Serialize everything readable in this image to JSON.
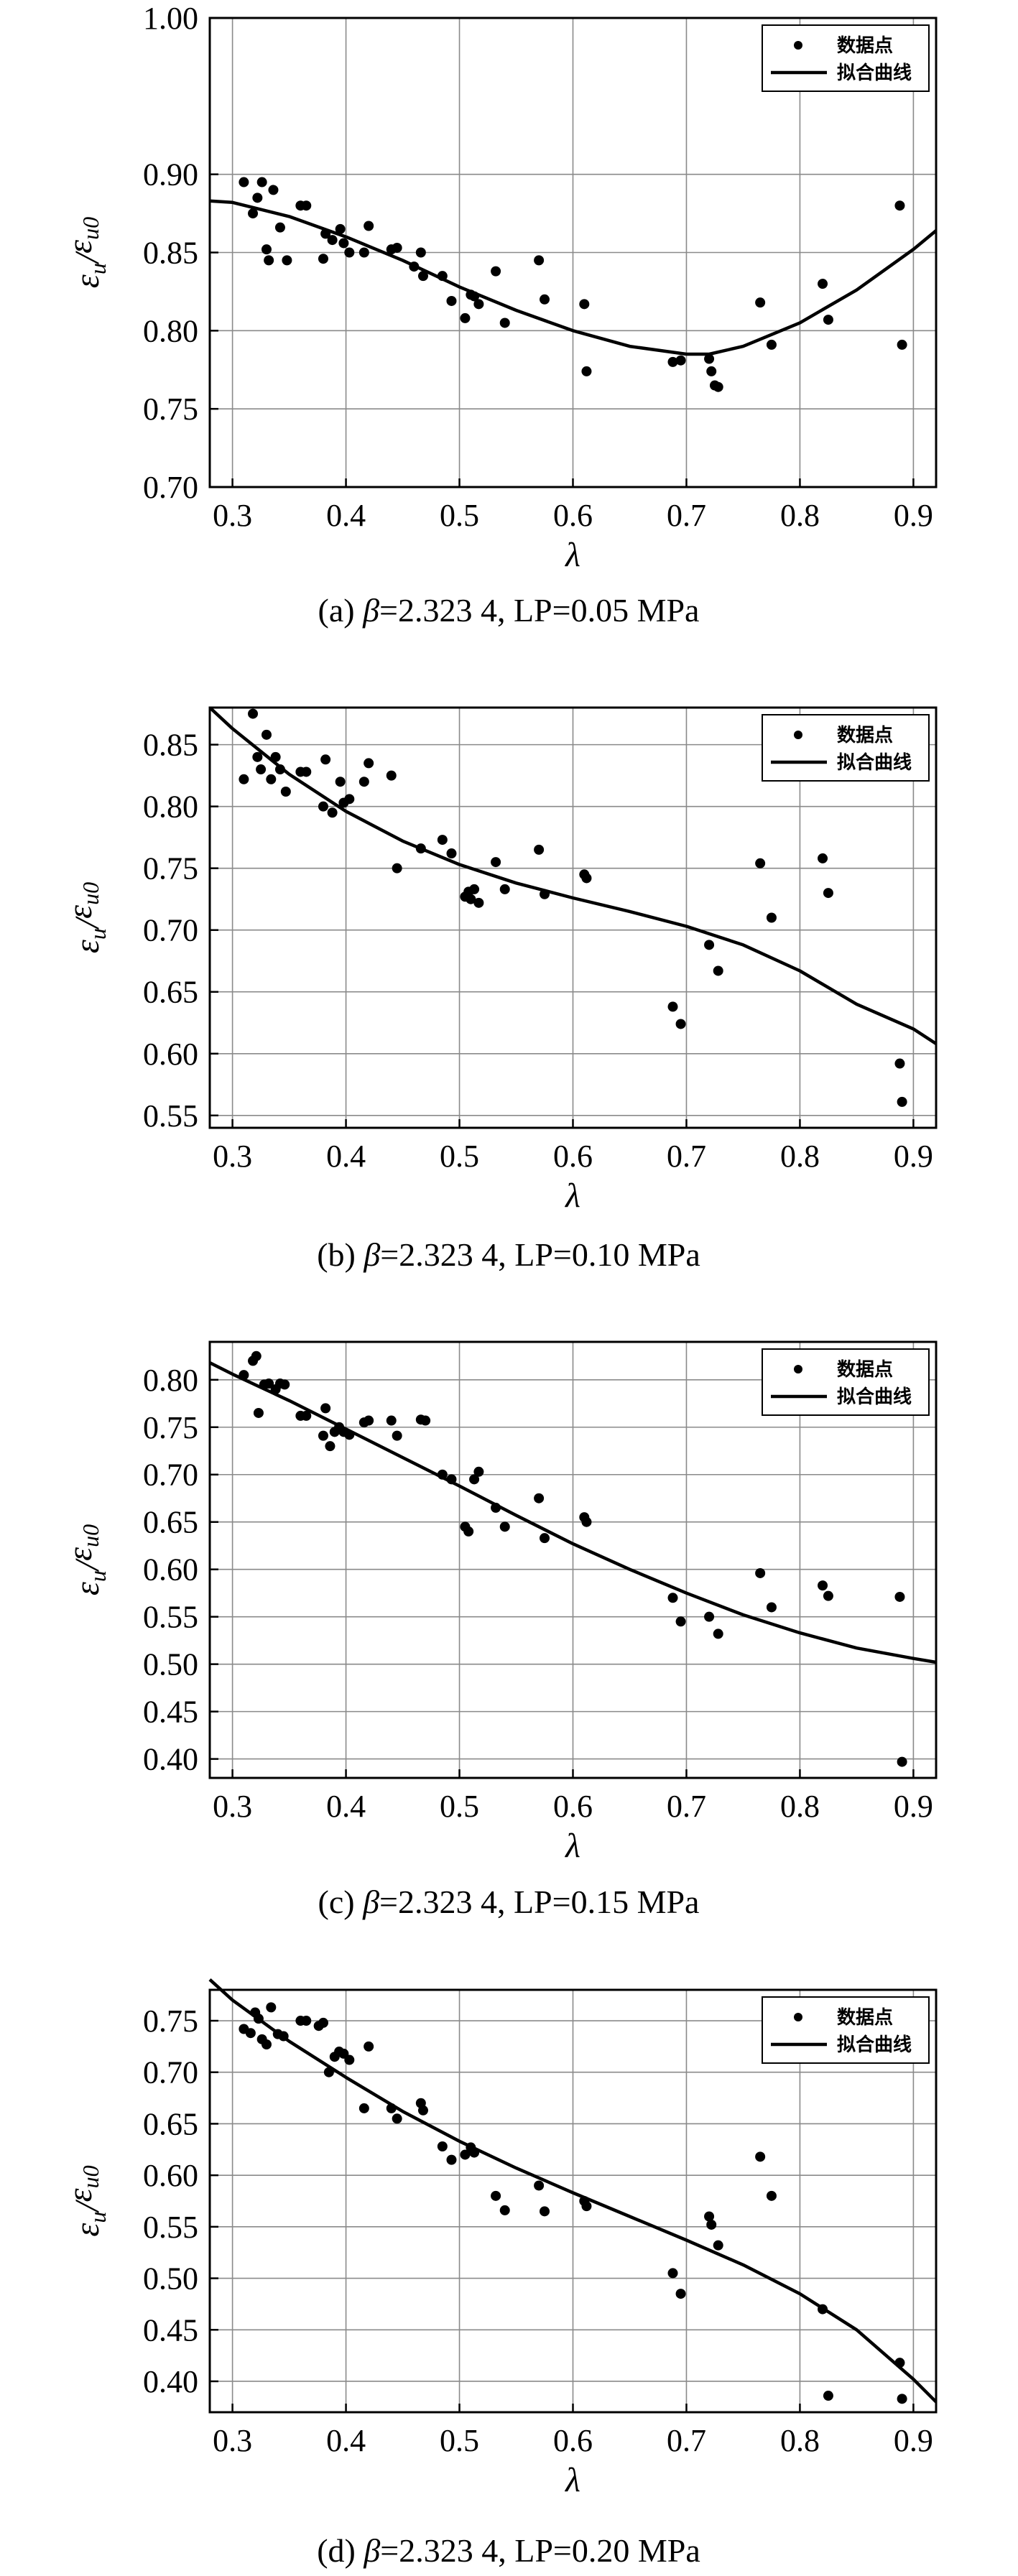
{
  "chart_data": [
    {
      "type": "scatter",
      "panel": "a",
      "caption_prefix": "(a) ",
      "caption_beta": "β",
      "caption_suffix": "=2.323 4, LP=0.05 MPa",
      "ylabel_main": "ε",
      "ylabel_num_sub": "u",
      "ylabel_den_sub": "u0",
      "xlabel": "λ",
      "xlim": [
        0.28,
        0.92
      ],
      "ylim": [
        0.7,
        1.0
      ],
      "xticks": [
        0.3,
        0.4,
        0.5,
        0.6,
        0.7,
        0.8,
        0.9
      ],
      "xtick_labels": [
        "0.3",
        "0.4",
        "0.5",
        "0.6",
        "0.7",
        "0.8",
        "0.9"
      ],
      "yticks": [
        0.7,
        0.75,
        0.8,
        0.85,
        0.9,
        1.0
      ],
      "ytick_labels": [
        "0.70",
        "0.75",
        "0.80",
        "0.85",
        "0.90",
        "1.00"
      ],
      "grid": true,
      "legend_position": "top-right",
      "legend": {
        "points": "数据点",
        "fit": "拟合曲线"
      },
      "series": [
        {
          "name": "数据点",
          "style": "points",
          "x": [
            0.31,
            0.318,
            0.322,
            0.326,
            0.33,
            0.332,
            0.336,
            0.342,
            0.348,
            0.36,
            0.365,
            0.38,
            0.382,
            0.388,
            0.395,
            0.398,
            0.403,
            0.416,
            0.42,
            0.44,
            0.445,
            0.46,
            0.466,
            0.468,
            0.485,
            0.493,
            0.505,
            0.51,
            0.513,
            0.517,
            0.532,
            0.54,
            0.57,
            0.575,
            0.61,
            0.612,
            0.688,
            0.695,
            0.72,
            0.722,
            0.725,
            0.728,
            0.765,
            0.775,
            0.82,
            0.825,
            0.888,
            0.89
          ],
          "y": [
            0.895,
            0.875,
            0.885,
            0.895,
            0.852,
            0.845,
            0.89,
            0.866,
            0.845,
            0.88,
            0.88,
            0.846,
            0.862,
            0.858,
            0.865,
            0.856,
            0.85,
            0.85,
            0.867,
            0.852,
            0.853,
            0.841,
            0.85,
            0.835,
            0.835,
            0.819,
            0.808,
            0.823,
            0.822,
            0.817,
            0.838,
            0.805,
            0.845,
            0.82,
            0.817,
            0.774,
            0.78,
            0.781,
            0.782,
            0.774,
            0.765,
            0.764,
            0.818,
            0.791,
            0.83,
            0.807,
            0.88,
            0.791
          ]
        },
        {
          "name": "拟合曲线",
          "style": "line",
          "x": [
            0.28,
            0.3,
            0.35,
            0.4,
            0.45,
            0.5,
            0.55,
            0.6,
            0.65,
            0.7,
            0.72,
            0.75,
            0.8,
            0.85,
            0.9,
            0.92
          ],
          "y": [
            0.883,
            0.882,
            0.873,
            0.86,
            0.845,
            0.828,
            0.813,
            0.8,
            0.79,
            0.785,
            0.785,
            0.79,
            0.805,
            0.826,
            0.852,
            0.864
          ]
        }
      ]
    },
    {
      "type": "scatter",
      "panel": "b",
      "caption_prefix": "(b) ",
      "caption_beta": "β",
      "caption_suffix": "=2.323 4, LP=0.10 MPa",
      "ylabel_main": "ε",
      "ylabel_num_sub": "u",
      "ylabel_den_sub": "u0",
      "xlabel": "λ",
      "xlim": [
        0.28,
        0.92
      ],
      "ylim": [
        0.54,
        0.88
      ],
      "xticks": [
        0.3,
        0.4,
        0.5,
        0.6,
        0.7,
        0.8,
        0.9
      ],
      "xtick_labels": [
        "0.3",
        "0.4",
        "0.5",
        "0.6",
        "0.7",
        "0.8",
        "0.9"
      ],
      "yticks": [
        0.55,
        0.6,
        0.65,
        0.7,
        0.75,
        0.8,
        0.85
      ],
      "ytick_labels": [
        "0.55",
        "0.60",
        "0.65",
        "0.70",
        "0.75",
        "0.80",
        "0.85"
      ],
      "grid": true,
      "legend_position": "top-right",
      "legend": {
        "points": "数据点",
        "fit": "拟合曲线"
      },
      "series": [
        {
          "name": "数据点",
          "style": "points",
          "x": [
            0.31,
            0.318,
            0.322,
            0.325,
            0.33,
            0.334,
            0.338,
            0.342,
            0.347,
            0.36,
            0.365,
            0.38,
            0.382,
            0.388,
            0.395,
            0.398,
            0.403,
            0.416,
            0.42,
            0.44,
            0.445,
            0.466,
            0.485,
            0.493,
            0.505,
            0.508,
            0.51,
            0.513,
            0.517,
            0.532,
            0.54,
            0.57,
            0.575,
            0.61,
            0.612,
            0.688,
            0.695,
            0.72,
            0.728,
            0.765,
            0.775,
            0.82,
            0.825,
            0.888,
            0.89
          ],
          "y": [
            0.822,
            0.875,
            0.84,
            0.83,
            0.858,
            0.822,
            0.84,
            0.83,
            0.812,
            0.828,
            0.828,
            0.8,
            0.838,
            0.795,
            0.82,
            0.803,
            0.806,
            0.82,
            0.835,
            0.825,
            0.75,
            0.766,
            0.773,
            0.762,
            0.727,
            0.731,
            0.725,
            0.733,
            0.722,
            0.755,
            0.733,
            0.765,
            0.729,
            0.745,
            0.742,
            0.638,
            0.624,
            0.688,
            0.667,
            0.754,
            0.71,
            0.758,
            0.73,
            0.592,
            0.561
          ]
        },
        {
          "name": "拟合曲线",
          "style": "line",
          "x": [
            0.28,
            0.3,
            0.35,
            0.4,
            0.45,
            0.5,
            0.55,
            0.6,
            0.65,
            0.7,
            0.75,
            0.8,
            0.85,
            0.9,
            0.92
          ],
          "y": [
            0.88,
            0.863,
            0.826,
            0.796,
            0.772,
            0.753,
            0.738,
            0.726,
            0.715,
            0.703,
            0.688,
            0.667,
            0.64,
            0.62,
            0.608
          ]
        }
      ]
    },
    {
      "type": "scatter",
      "panel": "c",
      "caption_prefix": "(c) ",
      "caption_beta": "β",
      "caption_suffix": "=2.323 4, LP=0.15 MPa",
      "ylabel_main": "ε",
      "ylabel_num_sub": "u",
      "ylabel_den_sub": "u0",
      "xlabel": "λ",
      "xlim": [
        0.28,
        0.92
      ],
      "ylim": [
        0.38,
        0.84
      ],
      "xticks": [
        0.3,
        0.4,
        0.5,
        0.6,
        0.7,
        0.8,
        0.9
      ],
      "xtick_labels": [
        "0.3",
        "0.4",
        "0.5",
        "0.6",
        "0.7",
        "0.8",
        "0.9"
      ],
      "yticks": [
        0.4,
        0.45,
        0.5,
        0.55,
        0.6,
        0.65,
        0.7,
        0.75,
        0.8
      ],
      "ytick_labels": [
        "0.40",
        "0.45",
        "0.50",
        "0.55",
        "0.60",
        "0.65",
        "0.70",
        "0.75",
        "0.80"
      ],
      "grid": true,
      "legend_position": "top-right",
      "legend": {
        "points": "数据点",
        "fit": "拟合曲线"
      },
      "series": [
        {
          "name": "数据点",
          "style": "points",
          "x": [
            0.31,
            0.318,
            0.321,
            0.323,
            0.328,
            0.332,
            0.338,
            0.342,
            0.346,
            0.36,
            0.365,
            0.38,
            0.382,
            0.386,
            0.39,
            0.394,
            0.398,
            0.403,
            0.416,
            0.42,
            0.44,
            0.445,
            0.466,
            0.47,
            0.485,
            0.493,
            0.505,
            0.508,
            0.513,
            0.517,
            0.532,
            0.54,
            0.57,
            0.575,
            0.61,
            0.612,
            0.688,
            0.695,
            0.72,
            0.728,
            0.765,
            0.775,
            0.82,
            0.825,
            0.888,
            0.89
          ],
          "y": [
            0.805,
            0.82,
            0.825,
            0.765,
            0.795,
            0.796,
            0.79,
            0.796,
            0.795,
            0.762,
            0.762,
            0.741,
            0.77,
            0.73,
            0.745,
            0.75,
            0.745,
            0.742,
            0.755,
            0.757,
            0.757,
            0.741,
            0.758,
            0.757,
            0.7,
            0.695,
            0.645,
            0.64,
            0.695,
            0.703,
            0.665,
            0.645,
            0.675,
            0.633,
            0.655,
            0.65,
            0.57,
            0.545,
            0.55,
            0.532,
            0.596,
            0.56,
            0.583,
            0.572,
            0.571,
            0.397
          ]
        },
        {
          "name": "拟合曲线",
          "style": "line",
          "x": [
            0.28,
            0.3,
            0.35,
            0.4,
            0.45,
            0.5,
            0.55,
            0.6,
            0.65,
            0.7,
            0.75,
            0.8,
            0.85,
            0.9,
            0.92
          ],
          "y": [
            0.818,
            0.806,
            0.778,
            0.748,
            0.718,
            0.688,
            0.657,
            0.627,
            0.6,
            0.575,
            0.552,
            0.533,
            0.517,
            0.506,
            0.502
          ]
        }
      ]
    },
    {
      "type": "scatter",
      "panel": "d",
      "caption_prefix": "(d) ",
      "caption_beta": "β",
      "caption_suffix": "=2.323 4, LP=0.20 MPa",
      "ylabel_main": "ε",
      "ylabel_num_sub": "u",
      "ylabel_den_sub": "u0",
      "xlabel": "λ",
      "xlim": [
        0.28,
        0.92
      ],
      "ylim": [
        0.37,
        0.78
      ],
      "xticks": [
        0.3,
        0.4,
        0.5,
        0.6,
        0.7,
        0.8,
        0.9
      ],
      "xtick_labels": [
        "0.3",
        "0.4",
        "0.5",
        "0.6",
        "0.7",
        "0.8",
        "0.9"
      ],
      "yticks": [
        0.4,
        0.45,
        0.5,
        0.55,
        0.6,
        0.65,
        0.7,
        0.75
      ],
      "ytick_labels": [
        "0.40",
        "0.45",
        "0.50",
        "0.55",
        "0.60",
        "0.65",
        "0.70",
        "0.75"
      ],
      "grid": true,
      "legend_position": "top-right",
      "legend": {
        "points": "数据点",
        "fit": "拟合曲线"
      },
      "series": [
        {
          "name": "数据点",
          "style": "points",
          "x": [
            0.31,
            0.316,
            0.32,
            0.323,
            0.326,
            0.33,
            0.334,
            0.34,
            0.345,
            0.36,
            0.365,
            0.376,
            0.38,
            0.385,
            0.39,
            0.394,
            0.398,
            0.403,
            0.416,
            0.42,
            0.44,
            0.445,
            0.466,
            0.468,
            0.485,
            0.493,
            0.505,
            0.51,
            0.513,
            0.532,
            0.54,
            0.57,
            0.575,
            0.61,
            0.612,
            0.688,
            0.695,
            0.72,
            0.722,
            0.728,
            0.765,
            0.775,
            0.82,
            0.825,
            0.888,
            0.89
          ],
          "y": [
            0.742,
            0.738,
            0.758,
            0.752,
            0.732,
            0.727,
            0.763,
            0.737,
            0.735,
            0.75,
            0.75,
            0.745,
            0.748,
            0.7,
            0.715,
            0.72,
            0.718,
            0.712,
            0.665,
            0.725,
            0.665,
            0.655,
            0.67,
            0.663,
            0.628,
            0.615,
            0.62,
            0.627,
            0.622,
            0.58,
            0.566,
            0.59,
            0.565,
            0.575,
            0.57,
            0.505,
            0.485,
            0.56,
            0.552,
            0.532,
            0.618,
            0.58,
            0.47,
            0.386,
            0.418,
            0.383
          ]
        },
        {
          "name": "拟合曲线",
          "style": "line",
          "x": [
            0.28,
            0.3,
            0.35,
            0.4,
            0.45,
            0.5,
            0.55,
            0.6,
            0.65,
            0.7,
            0.75,
            0.8,
            0.85,
            0.9,
            0.92
          ],
          "y": [
            0.79,
            0.77,
            0.73,
            0.695,
            0.662,
            0.633,
            0.607,
            0.583,
            0.56,
            0.537,
            0.513,
            0.485,
            0.45,
            0.402,
            0.38
          ]
        }
      ]
    }
  ]
}
